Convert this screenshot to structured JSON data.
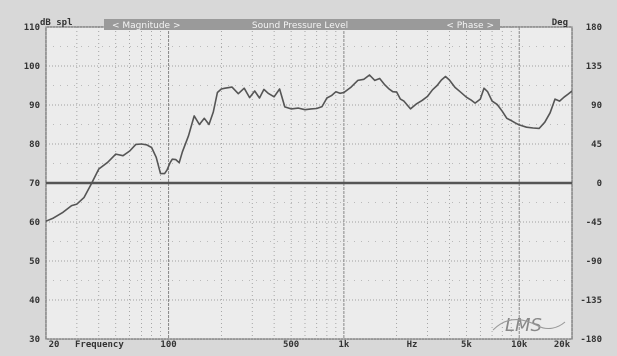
{
  "chart_data": {
    "type": "line",
    "left_unit": "dB spl",
    "right_unit": "Deg",
    "header": {
      "magnitude": "< Magnitude >",
      "title": "Sound Pressure Level",
      "phase": "< Phase >"
    },
    "x_scale": "log",
    "xlim": [
      20,
      20000
    ],
    "ylim": [
      30,
      110
    ],
    "y_ticks": [
      30,
      40,
      50,
      60,
      70,
      80,
      90,
      100,
      110
    ],
    "right_ticks": [
      "-180",
      "-135",
      "-90",
      "-45",
      "0",
      "45",
      "90",
      "135",
      "180"
    ],
    "x_tick_values": [
      20,
      100,
      500,
      1000,
      5000,
      10000,
      20000
    ],
    "x_tick_labels": [
      "20",
      "100",
      "500",
      "1k",
      "5k",
      "10k",
      "20k"
    ],
    "x_text_labels": {
      "frequency": "Frequency",
      "hz": "Hz"
    },
    "grid": true,
    "logo_text": "LMS",
    "colors": {
      "background": "#d8d8d8",
      "plot": "#ececec",
      "line": "#555555",
      "grid": "#888888",
      "header": "#9a9a9a"
    },
    "series": [
      {
        "x": [
          20,
          22,
          25,
          28,
          30,
          33,
          36,
          40,
          45,
          50,
          55,
          60,
          65,
          70,
          75,
          80,
          85,
          90,
          95,
          98,
          102,
          105,
          110,
          115,
          120,
          130,
          140,
          150,
          160,
          170,
          180,
          190,
          200,
          210,
          230,
          250,
          270,
          290,
          310,
          330,
          350,
          370,
          400,
          430,
          460,
          500,
          550,
          600,
          650,
          700,
          750,
          800,
          850,
          900,
          950,
          1000,
          1100,
          1200,
          1300,
          1400,
          1500,
          1600,
          1700,
          1800,
          1900,
          2000,
          2100,
          2200,
          2400,
          2600,
          2800,
          3000,
          3200,
          3400,
          3600,
          3800,
          4000,
          4300,
          4600,
          5000,
          5300,
          5600,
          6000,
          6300,
          6600,
          7000,
          7500,
          8000,
          8500,
          9000,
          9500,
          10000,
          11000,
          12000,
          13000,
          14000,
          15000,
          16000,
          17000,
          18000,
          19000,
          20000
        ],
        "y": [
          60.2,
          61.0,
          62.5,
          64.2,
          64.6,
          66.3,
          69.5,
          73.6,
          75.3,
          77.4,
          77.0,
          78.2,
          79.9,
          80.0,
          79.8,
          79.1,
          76.6,
          72.4,
          72.4,
          73.3,
          75.2,
          76.1,
          76.0,
          75.2,
          78.0,
          82.1,
          87.2,
          85.0,
          86.6,
          85.0,
          88.2,
          93.2,
          94.1,
          94.3,
          94.6,
          92.9,
          94.3,
          91.9,
          93.6,
          91.8,
          94.0,
          93.0,
          92.1,
          94.1,
          89.5,
          89.0,
          89.2,
          88.8,
          89.0,
          89.1,
          89.6,
          91.8,
          92.4,
          93.4,
          93.0,
          93.2,
          94.6,
          96.3,
          96.6,
          97.7,
          96.3,
          96.8,
          95.3,
          94.2,
          93.4,
          93.3,
          91.5,
          91.0,
          89.0,
          90.3,
          91.2,
          92.2,
          93.9,
          95.0,
          96.4,
          97.3,
          96.4,
          94.5,
          93.4,
          92.0,
          91.3,
          90.5,
          91.5,
          94.3,
          93.4,
          91.0,
          90.1,
          88.4,
          86.6,
          86.0,
          85.4,
          84.9,
          84.3,
          84.1,
          84.0,
          85.6,
          88.0,
          91.5,
          91.0,
          92.0,
          92.8,
          93.6
        ]
      }
    ]
  }
}
